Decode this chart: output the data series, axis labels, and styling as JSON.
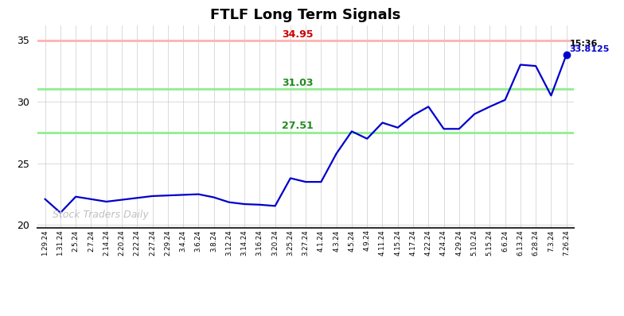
{
  "title": "FTLF Long Term Signals",
  "line_color": "#0000cc",
  "background_color": "#ffffff",
  "grid_color": "#cccccc",
  "hline_red": 34.95,
  "hline_red_color": "#ffb3b3",
  "hline_red_label": "34.95",
  "hline_green1": 31.03,
  "hline_green2": 27.51,
  "hline_green_color": "#90ee90",
  "hline_green1_label": "31.03",
  "hline_green2_label": "27.51",
  "last_price": 33.8125,
  "last_time": "15:36",
  "watermark": "Stock Traders Daily",
  "ylim": [
    19.8,
    36.2
  ],
  "yticks": [
    20,
    25,
    30,
    35
  ],
  "x_labels": [
    "1.29.24",
    "1.31.24",
    "2.5.24",
    "2.7.24",
    "2.14.24",
    "2.20.24",
    "2.22.24",
    "2.27.24",
    "2.29.24",
    "3.4.24",
    "3.6.24",
    "3.8.24",
    "3.12.24",
    "3.14.24",
    "3.16.24",
    "3.20.24",
    "3.25.24",
    "3.27.24",
    "4.1.24",
    "4.3.24",
    "4.5.24",
    "4.9.24",
    "4.11.24",
    "4.15.24",
    "4.17.24",
    "4.22.24",
    "4.24.24",
    "4.29.24",
    "5.10.24",
    "5.15.24",
    "6.6.24",
    "6.13.24",
    "6.28.24",
    "7.3.24",
    "7.26.24"
  ],
  "prices": [
    22.1,
    21.0,
    22.3,
    22.1,
    21.9,
    22.05,
    22.2,
    22.35,
    22.4,
    22.45,
    22.5,
    22.25,
    21.85,
    21.7,
    21.65,
    21.55,
    23.8,
    23.5,
    23.5,
    25.8,
    27.6,
    27.0,
    28.3,
    27.9,
    28.9,
    29.6,
    27.8,
    27.8,
    29.0,
    29.6,
    30.15,
    33.0,
    32.9,
    30.5,
    33.8125
  ]
}
